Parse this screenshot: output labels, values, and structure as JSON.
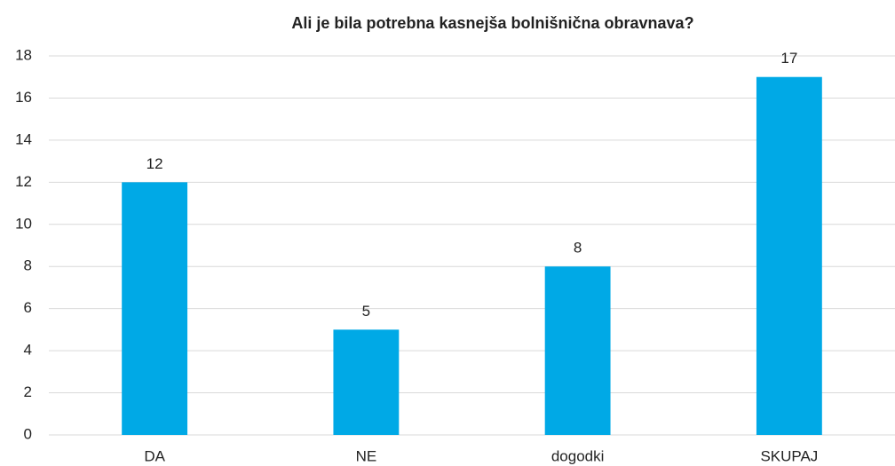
{
  "chart_data": {
    "type": "bar",
    "title": "Ali je bila potrebna kasnejša bolnišnična obravnava?",
    "categories": [
      "DA",
      "NE",
      "dogodki",
      "SKUPAJ"
    ],
    "values": [
      12,
      5,
      8,
      17
    ],
    "color": "#00a9e6",
    "ylim": [
      0,
      18
    ],
    "yticks": [
      0,
      2,
      4,
      6,
      8,
      10,
      12,
      14,
      16,
      18
    ],
    "grid": true
  }
}
